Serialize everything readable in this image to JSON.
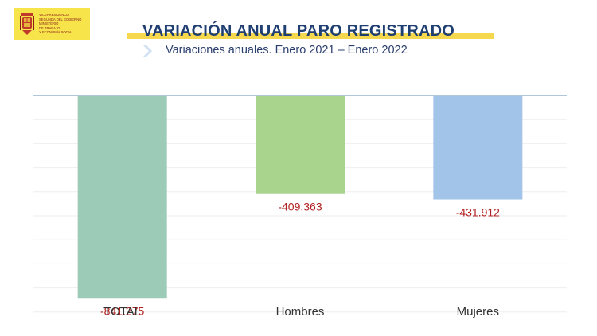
{
  "header": {
    "logo_lines": [
      "Vicepresidencia",
      "Segunda del Gobierno",
      "Ministerio",
      "de Trabajo",
      "y Economía Social"
    ],
    "title": "VARIACIÓN ANUAL PARO REGISTRADO",
    "subtitle": "Variaciones anuales. Enero 2021 – Enero 2022"
  },
  "colors": {
    "title": "#1f3f72",
    "accent_bar": "#f6d84e",
    "label_negative": "#b22222"
  },
  "chart_data": {
    "type": "bar",
    "title": "VARIACIÓN ANUAL PARO REGISTRADO",
    "subtitle": "Variaciones anuales. Enero 2021 – Enero 2022",
    "categories": [
      "TOTAL",
      "Hombres",
      "Mujeres"
    ],
    "values": [
      -841275,
      -409363,
      -431912
    ],
    "data_labels": [
      "-841.275",
      "-409.363",
      "-431.912"
    ],
    "bar_colors": [
      "#9ccbb8",
      "#a9d48e",
      "#a2c4e8"
    ],
    "ylim": [
      -900000,
      0
    ],
    "grid": true,
    "legend": "none",
    "xlabel": "",
    "ylabel": ""
  }
}
